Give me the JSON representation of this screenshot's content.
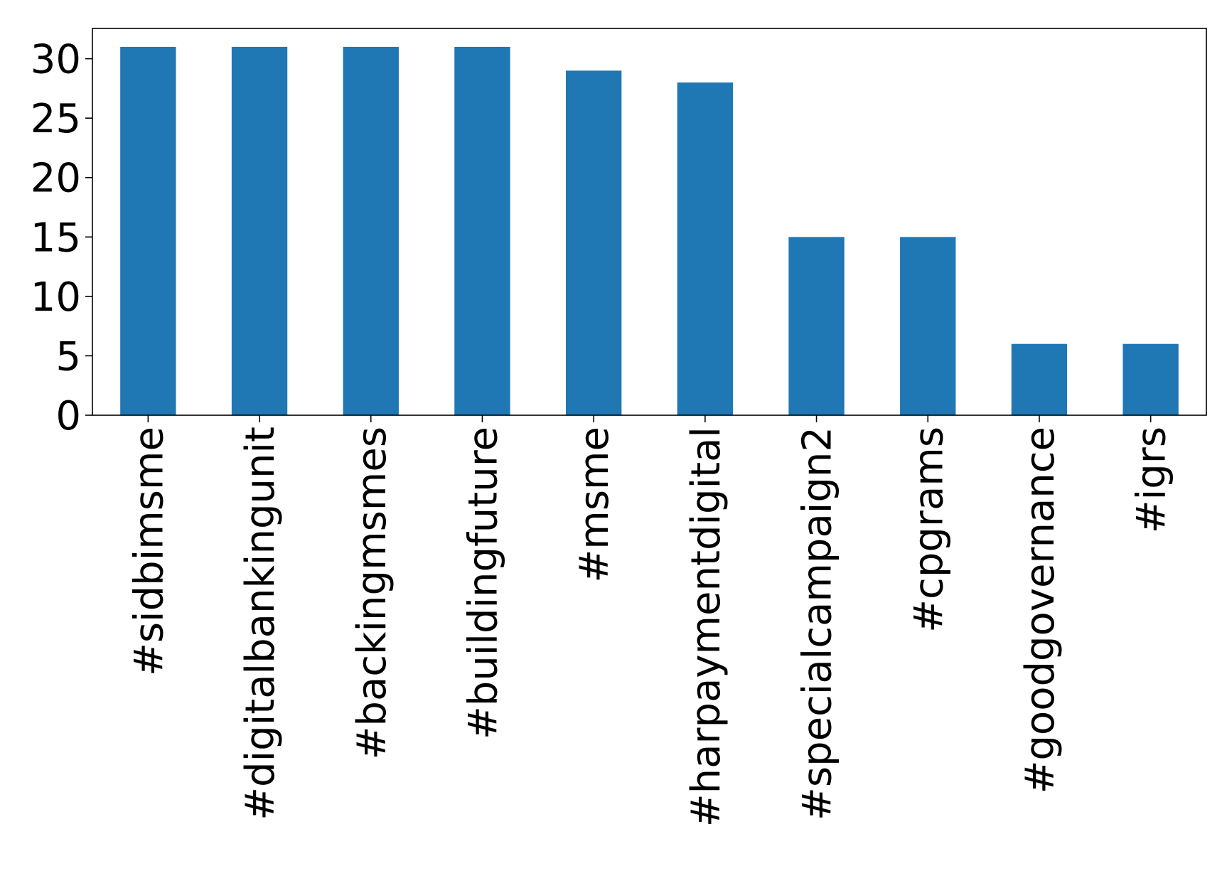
{
  "chart_data": {
    "type": "bar",
    "title": "",
    "xlabel": "",
    "ylabel": "",
    "categories": [
      "#sidbimsme",
      "#digitalbankingunit",
      "#backingmsmes",
      "#buildingfuture",
      "#msme",
      "#harpaymentdigital",
      "#specialcampaign2",
      "#cpgrams",
      "#goodgovernance",
      "#igrs"
    ],
    "values": [
      31,
      31,
      31,
      31,
      29,
      28,
      15,
      15,
      6,
      6
    ],
    "ylim": [
      0,
      32.55
    ],
    "yticks": [
      0,
      5,
      10,
      15,
      20,
      25,
      30
    ],
    "grid": false,
    "legend": "none",
    "bar_color": "#1f77b4"
  }
}
